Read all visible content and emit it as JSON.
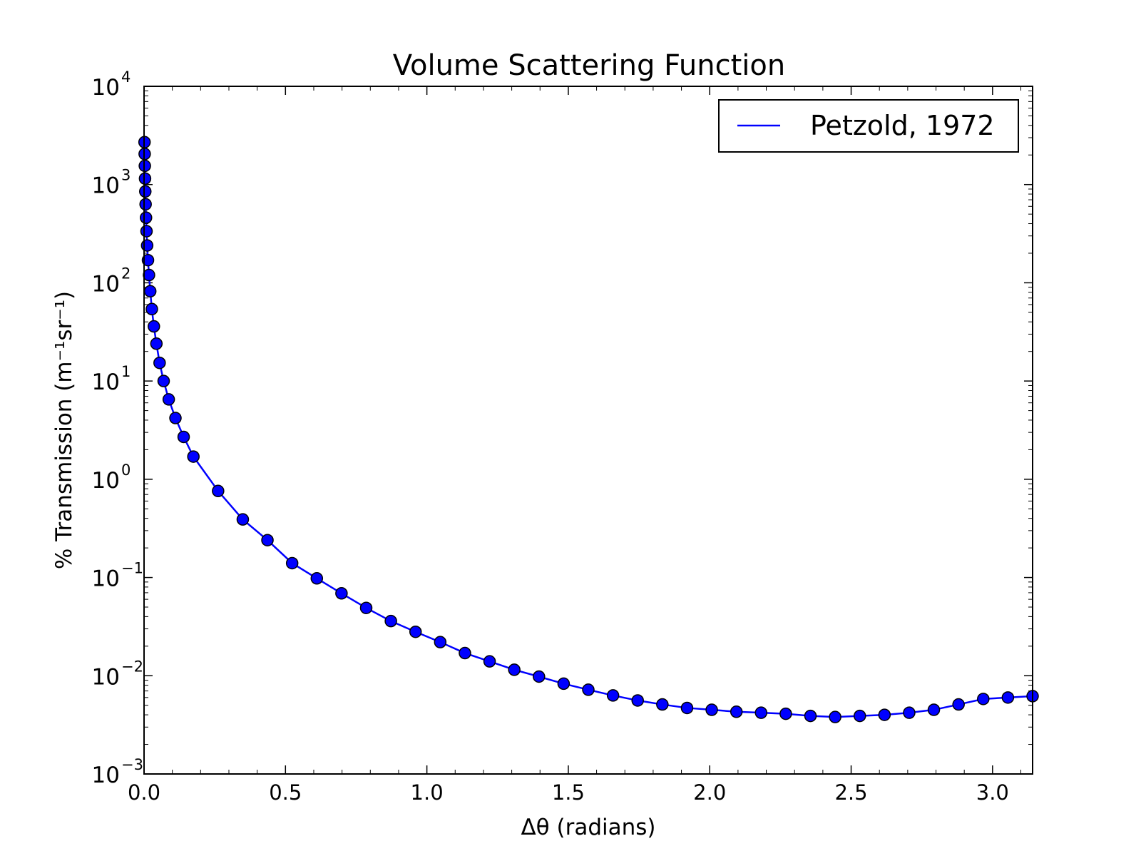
{
  "chart_data": {
    "type": "line",
    "title": "Volume Scattering Function",
    "xlabel": "Δθ (radians)",
    "ylabel": "% Transmission (m⁻¹sr⁻¹)",
    "yscale": "log",
    "xlim": [
      0,
      3.1416
    ],
    "ylim": [
      0.001,
      10000
    ],
    "grid": false,
    "legend_position": "top-right",
    "line_color": "#0000ff",
    "marker": "circle",
    "xticks": [
      "0.0",
      "0.5",
      "1.0",
      "1.5",
      "2.0",
      "2.5",
      "3.0"
    ],
    "yticks": [
      {
        "base": "10",
        "exp": "-3"
      },
      {
        "base": "10",
        "exp": "-2"
      },
      {
        "base": "10",
        "exp": "-1"
      },
      {
        "base": "10",
        "exp": "0"
      },
      {
        "base": "10",
        "exp": "1"
      },
      {
        "base": "10",
        "exp": "2"
      },
      {
        "base": "10",
        "exp": "3"
      },
      {
        "base": "10",
        "exp": "4"
      }
    ],
    "series": [
      {
        "name": "Petzold, 1972",
        "x": [
          0.0017,
          0.0022,
          0.0028,
          0.0035,
          0.0044,
          0.0055,
          0.0069,
          0.0087,
          0.011,
          0.0139,
          0.0175,
          0.0219,
          0.0276,
          0.0347,
          0.0437,
          0.055,
          0.0693,
          0.0873,
          0.111,
          0.14,
          0.1745,
          0.2618,
          0.3491,
          0.4363,
          0.5236,
          0.6109,
          0.6981,
          0.7854,
          0.8727,
          0.9599,
          1.0472,
          1.1345,
          1.2217,
          1.309,
          1.3963,
          1.4835,
          1.5708,
          1.6581,
          1.7453,
          1.8326,
          1.9199,
          2.0071,
          2.0944,
          2.1817,
          2.2689,
          2.3562,
          2.4435,
          2.5307,
          2.618,
          2.7053,
          2.7925,
          2.8798,
          2.9671,
          3.0543,
          3.1416
        ],
        "y": [
          2700,
          2050,
          1550,
          1150,
          850,
          630,
          460,
          335,
          240,
          170,
          120,
          82,
          54,
          36,
          24,
          15.3,
          10.0,
          6.5,
          4.2,
          2.7,
          1.7,
          0.76,
          0.39,
          0.24,
          0.14,
          0.098,
          0.069,
          0.049,
          0.036,
          0.028,
          0.022,
          0.017,
          0.014,
          0.0115,
          0.0098,
          0.0083,
          0.0072,
          0.0063,
          0.0056,
          0.0051,
          0.0047,
          0.0045,
          0.0043,
          0.0042,
          0.0041,
          0.0039,
          0.0038,
          0.0039,
          0.004,
          0.0042,
          0.0045,
          0.0051,
          0.0058,
          0.006,
          0.0062
        ]
      }
    ]
  }
}
